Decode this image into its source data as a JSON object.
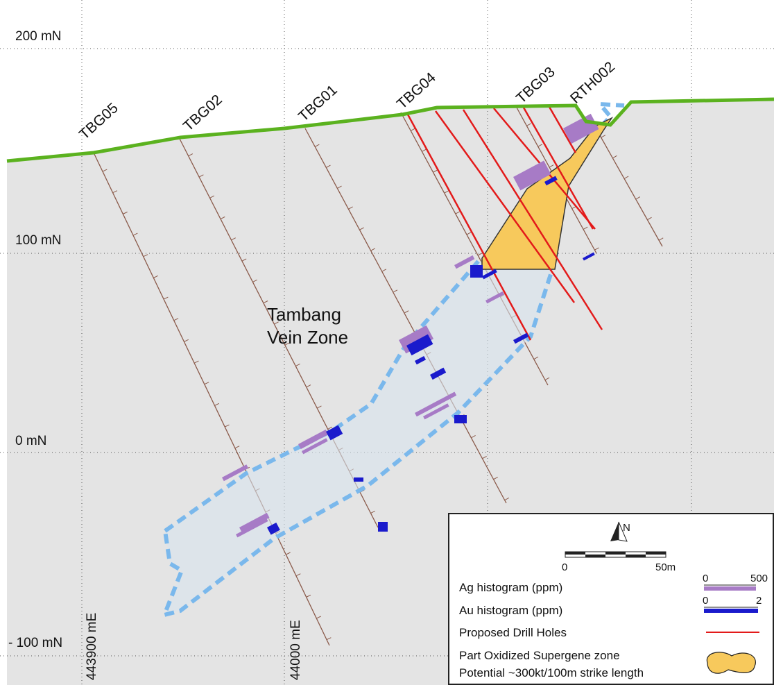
{
  "grid": {
    "northings": [
      "200 mN",
      "100 mN",
      "0 mN",
      "- 100 mN"
    ],
    "eastings": [
      "443900 mE",
      "44000 mE"
    ]
  },
  "drill_holes": [
    "TBG05",
    "TBG02",
    "TBG01",
    "TBG04",
    "TBG03",
    "RTH002"
  ],
  "zone_label": [
    "Tambang",
    "Vein Zone"
  ],
  "legend": {
    "north": "N",
    "scale": {
      "start": "0",
      "end": "50m"
    },
    "items": [
      {
        "label": "Ag histogram (ppm)",
        "scale_start": "0",
        "scale_end": "500"
      },
      {
        "label": "Au histogram (ppm)",
        "scale_start": "0",
        "scale_end": "2"
      },
      {
        "label": "Proposed Drill Holes"
      },
      {
        "label": "Part Oxidized Supergene zone",
        "note": "Potential ~300kt/100m strike length"
      }
    ]
  }
}
